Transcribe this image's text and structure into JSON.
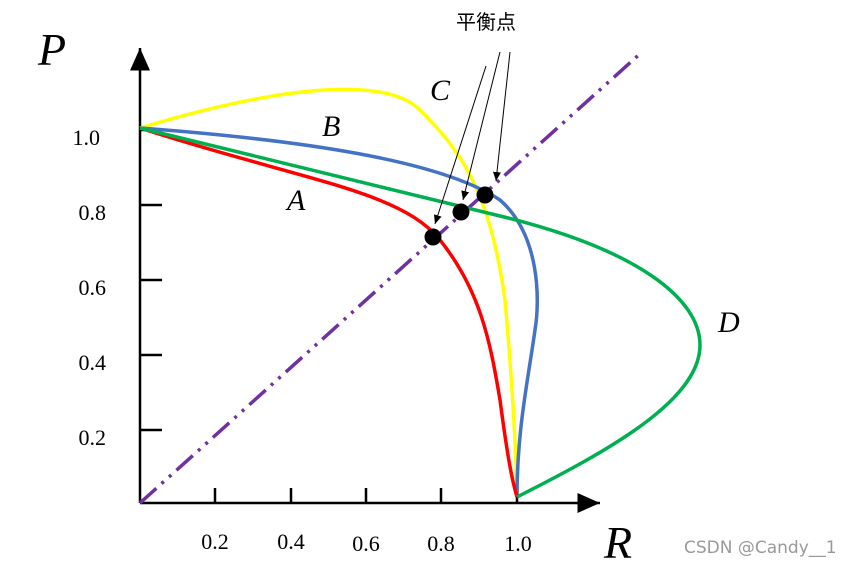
{
  "axes": {
    "y_label": "P",
    "x_label": "R",
    "y_ticks": [
      "1.0",
      "0.8",
      "0.6",
      "0.4",
      "0.2"
    ],
    "x_ticks": [
      "0.2",
      "0.4",
      "0.6",
      "0.8",
      "1.0"
    ]
  },
  "curve_labels": [
    "A",
    "B",
    "C",
    "D"
  ],
  "annotation": "平衡点",
  "watermark": "CSDN @Candy__1"
}
